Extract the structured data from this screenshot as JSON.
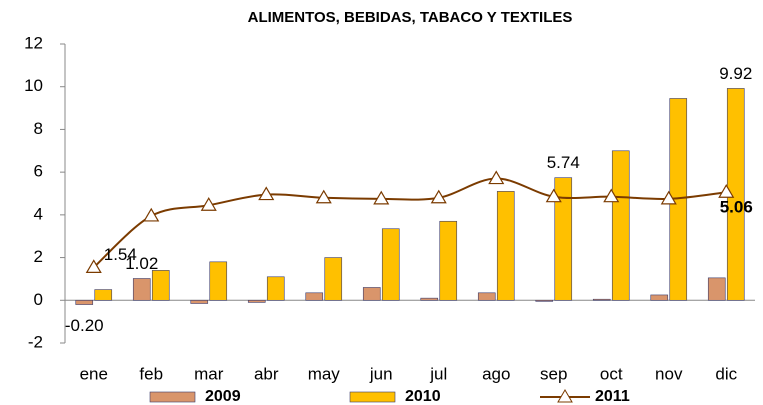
{
  "chart_data": {
    "type": "bar_line",
    "title": "ALIMENTOS, BEBIDAS, TABACO Y TEXTILES",
    "categories": [
      "ene",
      "feb",
      "mar",
      "abr",
      "may",
      "jun",
      "jul",
      "ago",
      "sep",
      "oct",
      "nov",
      "dic"
    ],
    "series": [
      {
        "name": "2009",
        "type": "bar",
        "color": "#d9956b",
        "values": [
          -0.2,
          1.02,
          -0.15,
          -0.1,
          0.35,
          0.6,
          0.1,
          0.35,
          -0.05,
          0.05,
          0.25,
          1.05
        ],
        "value_labels": [
          "-0.20",
          "1.02",
          null,
          null,
          null,
          null,
          null,
          null,
          null,
          null,
          null,
          null
        ]
      },
      {
        "name": "2010",
        "type": "bar",
        "color": "#ffc000",
        "values": [
          0.5,
          1.4,
          1.8,
          1.1,
          2.0,
          3.35,
          3.7,
          5.1,
          5.74,
          7.0,
          9.45,
          9.92
        ],
        "value_labels": [
          null,
          null,
          null,
          null,
          null,
          null,
          null,
          null,
          "5.74",
          null,
          null,
          "9.92"
        ]
      },
      {
        "name": "2011",
        "type": "line",
        "color": "#7b3b00",
        "values": [
          1.54,
          3.95,
          4.45,
          4.95,
          4.8,
          4.75,
          4.8,
          5.7,
          4.85,
          4.85,
          4.75,
          5.06
        ],
        "value_labels": [
          "1.54",
          null,
          null,
          null,
          null,
          null,
          null,
          null,
          null,
          null,
          null,
          "5.06"
        ]
      }
    ],
    "ylim": [
      -2,
      12
    ],
    "yticks": [
      -2,
      0,
      2,
      4,
      6,
      8,
      10,
      12
    ],
    "grid": false,
    "legend": "bottom"
  }
}
